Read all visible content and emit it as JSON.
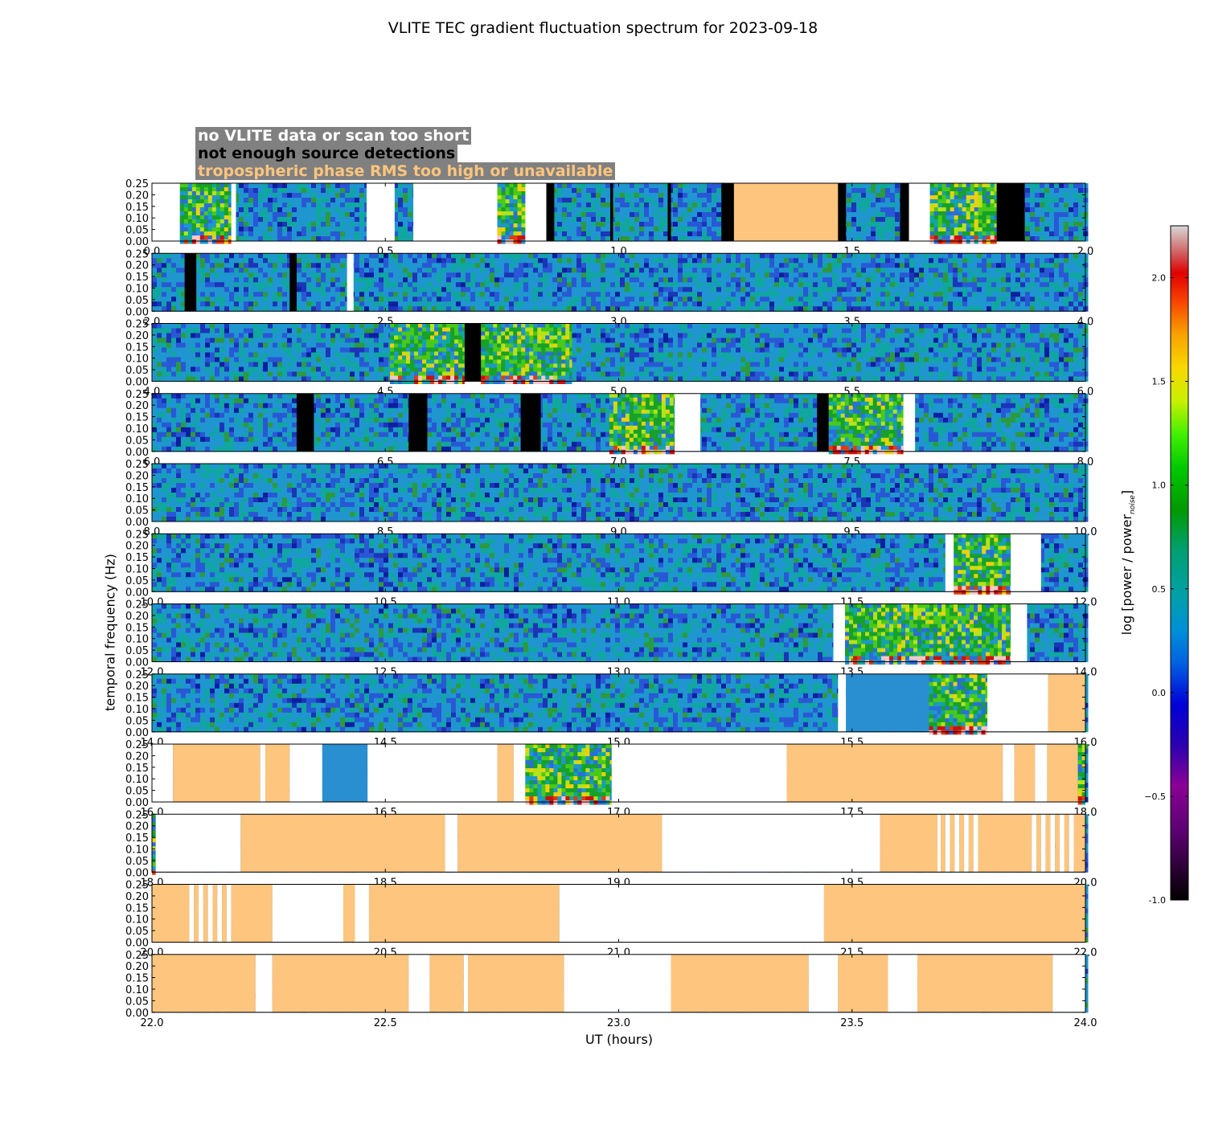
{
  "title": "VLITE TEC gradient fluctuation spectrum for 2023-09-18",
  "legend": {
    "items": [
      {
        "label": "no VLITE data or scan too short",
        "color": "#ffffff"
      },
      {
        "label": "not enough source detections",
        "color": "#000000"
      },
      {
        "label": "tropospheric phase RMS too high or unavailable",
        "color": "#fdc57e"
      }
    ]
  },
  "colorbar": {
    "label_main": "log [power / power",
    "label_sub": "noise",
    "label_end": "]",
    "range": [
      -1.0,
      2.25
    ],
    "ticks": [
      "-1.0",
      "−0.5",
      "0.0",
      "0.5",
      "1.0",
      "1.5",
      "2.0"
    ],
    "tick_values": [
      -1.0,
      -0.5,
      0.0,
      0.5,
      1.0,
      1.5,
      2.0
    ]
  },
  "colors": {
    "no_data": "#ffffff",
    "few_detections": "#000000",
    "tropo": "#fdc57e",
    "background_spectrum": "#2a8fd0"
  },
  "chart_data": {
    "type": "heatmap",
    "title": "VLITE TEC gradient fluctuation spectrum for 2023-09-18",
    "xlabel": "UT (hours)",
    "ylabel": "temporal frequency (Hz)",
    "ylim": [
      0.0,
      0.25
    ],
    "yticks": [
      "0.00",
      "0.05",
      "0.10",
      "0.15",
      "0.20",
      "0.25"
    ],
    "panels": [
      {
        "xlim": [
          0,
          2
        ],
        "xticks": [
          "0.0",
          "0.5",
          "1.0",
          "1.5",
          "2.0"
        ],
        "segments": [
          {
            "start": 0.0,
            "end": 0.06,
            "kind": "nodata"
          },
          {
            "start": 0.06,
            "end": 0.17,
            "kind": "active"
          },
          {
            "start": 0.17,
            "end": 0.18,
            "kind": "nodata"
          },
          {
            "start": 0.46,
            "end": 0.52,
            "kind": "nodata"
          },
          {
            "start": 0.56,
            "end": 0.74,
            "kind": "nodata"
          },
          {
            "start": 0.74,
            "end": 0.8,
            "kind": "active"
          },
          {
            "start": 0.8,
            "end": 0.845,
            "kind": "nodata"
          },
          {
            "start": 0.845,
            "end": 0.862,
            "kind": "fewdet"
          },
          {
            "start": 0.982,
            "end": 0.988,
            "kind": "fewdet"
          },
          {
            "start": 1.105,
            "end": 1.112,
            "kind": "fewdet"
          },
          {
            "start": 1.22,
            "end": 1.247,
            "kind": "fewdet"
          },
          {
            "start": 1.247,
            "end": 1.47,
            "kind": "tropo"
          },
          {
            "start": 1.47,
            "end": 1.487,
            "kind": "fewdet"
          },
          {
            "start": 1.603,
            "end": 1.622,
            "kind": "fewdet"
          },
          {
            "start": 1.622,
            "end": 1.667,
            "kind": "nodata"
          },
          {
            "start": 1.667,
            "end": 1.81,
            "kind": "active"
          },
          {
            "start": 1.81,
            "end": 1.87,
            "kind": "fewdet"
          }
        ]
      },
      {
        "xlim": [
          2,
          4
        ],
        "xticks": [
          "2.0",
          "2.5",
          "3.0",
          "3.5",
          "4.0"
        ],
        "segments": [
          {
            "start": 2.07,
            "end": 2.095,
            "kind": "fewdet"
          },
          {
            "start": 2.295,
            "end": 2.31,
            "kind": "fewdet"
          },
          {
            "start": 2.418,
            "end": 2.432,
            "kind": "nodata"
          }
        ]
      },
      {
        "xlim": [
          4,
          6
        ],
        "xticks": [
          "4.0",
          "4.5",
          "5.0",
          "5.5",
          "6.0"
        ],
        "segments": [
          {
            "start": 4.51,
            "end": 4.67,
            "kind": "active"
          },
          {
            "start": 4.67,
            "end": 4.705,
            "kind": "fewdet"
          },
          {
            "start": 4.705,
            "end": 4.9,
            "kind": "active"
          }
        ]
      },
      {
        "xlim": [
          6,
          8
        ],
        "xticks": [
          "6.0",
          "6.5",
          "7.0",
          "7.5",
          "8.0"
        ],
        "segments": [
          {
            "start": 6.31,
            "end": 6.347,
            "kind": "fewdet"
          },
          {
            "start": 6.55,
            "end": 6.59,
            "kind": "fewdet"
          },
          {
            "start": 6.79,
            "end": 6.833,
            "kind": "fewdet"
          },
          {
            "start": 6.98,
            "end": 7.12,
            "kind": "active"
          },
          {
            "start": 7.12,
            "end": 7.175,
            "kind": "nodata"
          },
          {
            "start": 7.425,
            "end": 7.45,
            "kind": "fewdet"
          },
          {
            "start": 7.45,
            "end": 7.61,
            "kind": "active"
          },
          {
            "start": 7.61,
            "end": 7.635,
            "kind": "nodata"
          }
        ]
      },
      {
        "xlim": [
          8,
          10
        ],
        "xticks": [
          "8.0",
          "8.5",
          "9.0",
          "9.5",
          "10.0"
        ],
        "segments": []
      },
      {
        "xlim": [
          10,
          12
        ],
        "xticks": [
          "10.0",
          "10.5",
          "11.0",
          "11.5",
          "12.0"
        ],
        "segments": [
          {
            "start": 11.7,
            "end": 11.718,
            "kind": "nodata"
          },
          {
            "start": 11.718,
            "end": 11.84,
            "kind": "active"
          },
          {
            "start": 11.84,
            "end": 11.905,
            "kind": "nodata"
          }
        ]
      },
      {
        "xlim": [
          12,
          14
        ],
        "xticks": [
          "12.0",
          "12.5",
          "13.0",
          "13.5",
          "14.0"
        ],
        "segments": [
          {
            "start": 13.46,
            "end": 13.485,
            "kind": "nodata"
          },
          {
            "start": 13.485,
            "end": 13.84,
            "kind": "active"
          },
          {
            "start": 13.84,
            "end": 13.875,
            "kind": "nodata"
          }
        ]
      },
      {
        "xlim": [
          14,
          16
        ],
        "xticks": [
          "14.0",
          "14.5",
          "15.0",
          "15.5",
          "16.0"
        ],
        "segments": [
          {
            "start": 15.47,
            "end": 15.487,
            "kind": "nodata"
          },
          {
            "start": 15.487,
            "end": 15.665,
            "kind": "quiet"
          },
          {
            "start": 15.665,
            "end": 15.79,
            "kind": "active"
          },
          {
            "start": 15.79,
            "end": 15.92,
            "kind": "nodata"
          },
          {
            "start": 15.92,
            "end": 16.0,
            "kind": "tropo"
          }
        ]
      },
      {
        "xlim": [
          16,
          18
        ],
        "xticks": [
          "16.0",
          "16.5",
          "17.0",
          "17.5",
          "18.0"
        ],
        "segments": [
          {
            "start": 16.0,
            "end": 16.045,
            "kind": "nodata"
          },
          {
            "start": 16.045,
            "end": 16.232,
            "kind": "tropo"
          },
          {
            "start": 16.232,
            "end": 16.243,
            "kind": "nodata"
          },
          {
            "start": 16.243,
            "end": 16.295,
            "kind": "tropo"
          },
          {
            "start": 16.295,
            "end": 16.365,
            "kind": "nodata"
          },
          {
            "start": 16.365,
            "end": 16.462,
            "kind": "quiet"
          },
          {
            "start": 16.462,
            "end": 16.74,
            "kind": "nodata"
          },
          {
            "start": 16.74,
            "end": 16.775,
            "kind": "tropo"
          },
          {
            "start": 16.775,
            "end": 16.8,
            "kind": "nodata"
          },
          {
            "start": 16.8,
            "end": 16.985,
            "kind": "active"
          },
          {
            "start": 16.985,
            "end": 17.36,
            "kind": "nodata"
          },
          {
            "start": 17.36,
            "end": 17.823,
            "kind": "tropo"
          },
          {
            "start": 17.823,
            "end": 17.848,
            "kind": "nodata"
          },
          {
            "start": 17.848,
            "end": 17.892,
            "kind": "tropo"
          },
          {
            "start": 17.892,
            "end": 17.918,
            "kind": "nodata"
          },
          {
            "start": 17.918,
            "end": 17.984,
            "kind": "tropo"
          },
          {
            "start": 17.984,
            "end": 18.0,
            "kind": "active"
          }
        ]
      },
      {
        "xlim": [
          18,
          20
        ],
        "xticks": [
          "18.0",
          "18.5",
          "19.0",
          "19.5",
          "20.0"
        ],
        "segments": [
          {
            "start": 18.0,
            "end": 18.008,
            "kind": "active"
          },
          {
            "start": 18.008,
            "end": 18.19,
            "kind": "nodata"
          },
          {
            "start": 18.19,
            "end": 18.628,
            "kind": "tropo"
          },
          {
            "start": 18.628,
            "end": 18.655,
            "kind": "nodata"
          },
          {
            "start": 18.655,
            "end": 19.093,
            "kind": "tropo"
          },
          {
            "start": 19.093,
            "end": 19.56,
            "kind": "nodata"
          },
          {
            "start": 19.56,
            "end": 19.683,
            "kind": "tropo"
          },
          {
            "start": 19.683,
            "end": 19.69,
            "kind": "nodata"
          },
          {
            "start": 19.69,
            "end": 19.7,
            "kind": "tropo"
          },
          {
            "start": 19.7,
            "end": 19.71,
            "kind": "nodata"
          },
          {
            "start": 19.71,
            "end": 19.72,
            "kind": "tropo"
          },
          {
            "start": 19.72,
            "end": 19.73,
            "kind": "nodata"
          },
          {
            "start": 19.73,
            "end": 19.74,
            "kind": "tropo"
          },
          {
            "start": 19.74,
            "end": 19.75,
            "kind": "nodata"
          },
          {
            "start": 19.75,
            "end": 19.76,
            "kind": "tropo"
          },
          {
            "start": 19.76,
            "end": 19.77,
            "kind": "nodata"
          },
          {
            "start": 19.77,
            "end": 19.885,
            "kind": "tropo"
          },
          {
            "start": 19.885,
            "end": 19.895,
            "kind": "nodata"
          },
          {
            "start": 19.895,
            "end": 19.905,
            "kind": "tropo"
          },
          {
            "start": 19.905,
            "end": 19.915,
            "kind": "nodata"
          },
          {
            "start": 19.915,
            "end": 19.925,
            "kind": "tropo"
          },
          {
            "start": 19.925,
            "end": 19.935,
            "kind": "nodata"
          },
          {
            "start": 19.935,
            "end": 19.945,
            "kind": "tropo"
          },
          {
            "start": 19.945,
            "end": 19.955,
            "kind": "nodata"
          },
          {
            "start": 19.955,
            "end": 19.965,
            "kind": "tropo"
          },
          {
            "start": 19.965,
            "end": 19.975,
            "kind": "nodata"
          },
          {
            "start": 19.975,
            "end": 20.0,
            "kind": "tropo"
          }
        ]
      },
      {
        "xlim": [
          20,
          22
        ],
        "xticks": [
          "20.0",
          "20.5",
          "21.0",
          "21.5",
          "22.0"
        ],
        "segments": [
          {
            "start": 20.0,
            "end": 20.08,
            "kind": "tropo"
          },
          {
            "start": 20.08,
            "end": 20.09,
            "kind": "nodata"
          },
          {
            "start": 20.09,
            "end": 20.1,
            "kind": "tropo"
          },
          {
            "start": 20.1,
            "end": 20.11,
            "kind": "nodata"
          },
          {
            "start": 20.11,
            "end": 20.12,
            "kind": "tropo"
          },
          {
            "start": 20.12,
            "end": 20.13,
            "kind": "nodata"
          },
          {
            "start": 20.13,
            "end": 20.14,
            "kind": "tropo"
          },
          {
            "start": 20.14,
            "end": 20.15,
            "kind": "nodata"
          },
          {
            "start": 20.15,
            "end": 20.16,
            "kind": "tropo"
          },
          {
            "start": 20.16,
            "end": 20.17,
            "kind": "nodata"
          },
          {
            "start": 20.17,
            "end": 20.258,
            "kind": "tropo"
          },
          {
            "start": 20.258,
            "end": 20.41,
            "kind": "nodata"
          },
          {
            "start": 20.41,
            "end": 20.435,
            "kind": "tropo"
          },
          {
            "start": 20.435,
            "end": 20.465,
            "kind": "nodata"
          },
          {
            "start": 20.465,
            "end": 20.873,
            "kind": "tropo"
          },
          {
            "start": 20.873,
            "end": 21.44,
            "kind": "nodata"
          },
          {
            "start": 21.44,
            "end": 22.0,
            "kind": "tropo"
          }
        ]
      },
      {
        "xlim": [
          22,
          24
        ],
        "xticks": [
          "22.0",
          "22.5",
          "23.0",
          "23.5",
          "24.0"
        ],
        "segments": [
          {
            "start": 22.0,
            "end": 22.222,
            "kind": "tropo"
          },
          {
            "start": 22.222,
            "end": 22.258,
            "kind": "nodata"
          },
          {
            "start": 22.258,
            "end": 22.55,
            "kind": "tropo"
          },
          {
            "start": 22.55,
            "end": 22.595,
            "kind": "nodata"
          },
          {
            "start": 22.595,
            "end": 22.668,
            "kind": "tropo"
          },
          {
            "start": 22.668,
            "end": 22.677,
            "kind": "nodata"
          },
          {
            "start": 22.677,
            "end": 22.883,
            "kind": "tropo"
          },
          {
            "start": 22.883,
            "end": 23.112,
            "kind": "nodata"
          },
          {
            "start": 23.112,
            "end": 23.407,
            "kind": "tropo"
          },
          {
            "start": 23.407,
            "end": 23.47,
            "kind": "nodata"
          },
          {
            "start": 23.47,
            "end": 23.577,
            "kind": "tropo"
          },
          {
            "start": 23.577,
            "end": 23.64,
            "kind": "nodata"
          },
          {
            "start": 23.64,
            "end": 23.93,
            "kind": "tropo"
          },
          {
            "start": 23.93,
            "end": 24.0,
            "kind": "nodata"
          }
        ]
      }
    ]
  }
}
